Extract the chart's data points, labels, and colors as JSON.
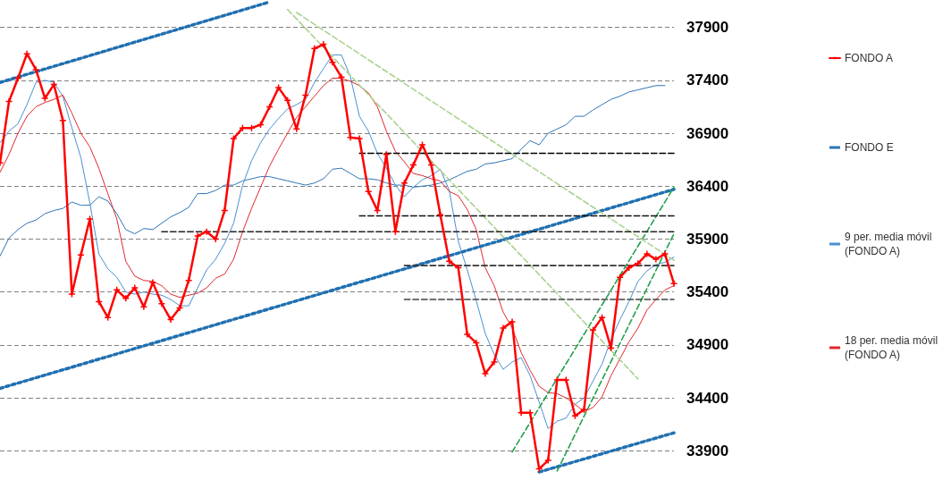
{
  "chart_data": {
    "type": "line",
    "categories": [
      null,
      null,
      null,
      null,
      null,
      null,
      null,
      null,
      null,
      null,
      null,
      null,
      null,
      null,
      null,
      null,
      null,
      null,
      null,
      null,
      null,
      null,
      null,
      null,
      null,
      null,
      null,
      null,
      null,
      null,
      null,
      null,
      null,
      null,
      null,
      null,
      null,
      null,
      null,
      null,
      null,
      null,
      null,
      null,
      null,
      null,
      null,
      null,
      null,
      null,
      null,
      null,
      null,
      null,
      null,
      null,
      null,
      null,
      null,
      null,
      null,
      null,
      null,
      null,
      null,
      null,
      null,
      null,
      null,
      null,
      null,
      null,
      null,
      null,
      null,
      null
    ],
    "ylim": [
      33650,
      38150
    ],
    "yticks": [
      33900,
      34400,
      34900,
      35400,
      35900,
      36400,
      36900,
      37400,
      37900
    ],
    "grid": "y",
    "legend": "right",
    "tick_labels": "y",
    "series": [
      {
        "name": "FONDO A",
        "color": "#ff0000",
        "marker": "cross",
        "line_style": "solid",
        "values": [
          36620,
          37200,
          37420,
          37650,
          37500,
          37230,
          37360,
          37020,
          35380,
          35750,
          36090,
          35310,
          35160,
          35420,
          35340,
          35440,
          35260,
          35490,
          35290,
          35140,
          35250,
          35510,
          35930,
          35970,
          35900,
          36170,
          36850,
          36950,
          36950,
          36980,
          37150,
          37330,
          37210,
          36940,
          37260,
          37700,
          37740,
          37570,
          37430,
          36860,
          36850,
          36350,
          36170,
          36700,
          35970,
          36430,
          36600,
          36790,
          36600,
          36130,
          35690,
          35630,
          35000,
          34920,
          34630,
          34740,
          35060,
          35120,
          34260,
          34260,
          33730,
          33810,
          34570,
          34570,
          34230,
          34290,
          35040,
          35160,
          34870,
          35540,
          35630,
          35670,
          35760,
          35710,
          35760,
          35480
        ]
      },
      {
        "name": "FONDO E",
        "color": "#2e75b6",
        "line_style": "solid",
        "values": [
          35740,
          35910,
          35990,
          36050,
          36080,
          36140,
          36170,
          36190,
          36250,
          36220,
          36220,
          36300,
          36260,
          36140,
          35990,
          35950,
          36000,
          35990,
          36050,
          36110,
          36150,
          36200,
          36330,
          36330,
          36360,
          36410,
          36410,
          36450,
          36470,
          36490,
          36490,
          36470,
          36450,
          36430,
          36410,
          36430,
          36470,
          36560,
          36570,
          36520,
          36470,
          36470,
          36460,
          36430,
          36410,
          36410,
          36390,
          36400,
          36410,
          36430,
          36460,
          36500,
          36540,
          36560,
          36610,
          36620,
          36640,
          36660,
          36750,
          36830,
          36790,
          36900,
          36940,
          36980,
          37060,
          37060,
          37120,
          37170,
          37220,
          37250,
          37290,
          37310,
          37330,
          37350,
          37350,
          null
        ]
      },
      {
        "name": "9 per. media móvil (FONDO A)",
        "color": "#4a90d0",
        "line_style": "solid",
        "values": [
          36810,
          36920,
          36990,
          37170,
          37380,
          37400,
          37380,
          37250,
          36950,
          36670,
          36240,
          35760,
          35620,
          35540,
          35400,
          35380,
          35400,
          35380,
          35370,
          35330,
          35270,
          35270,
          35440,
          35610,
          35710,
          35860,
          36050,
          36410,
          36640,
          36810,
          36940,
          37040,
          37130,
          37170,
          37220,
          37380,
          37510,
          37640,
          37640,
          37430,
          37060,
          36920,
          36710,
          36570,
          36410,
          36300,
          36390,
          36460,
          36500,
          36560,
          36360,
          35880,
          35610,
          35320,
          35010,
          34810,
          34670,
          34740,
          34780,
          34610,
          34360,
          34110,
          34180,
          34210,
          34340,
          34400,
          34560,
          34720,
          34950,
          35140,
          35310,
          35500,
          35600,
          35660,
          35680,
          35730
        ]
      },
      {
        "name": "18 per. media móvil (FONDO A)",
        "color": "#e0282c",
        "line_style": "solid",
        "values": [
          36530,
          36700,
          36900,
          37060,
          37150,
          37190,
          37220,
          37260,
          37090,
          36900,
          36770,
          36570,
          36330,
          36090,
          35690,
          35550,
          35510,
          35500,
          35460,
          35380,
          35350,
          35370,
          35390,
          35440,
          35530,
          35570,
          35710,
          35970,
          36190,
          36390,
          36590,
          36750,
          36900,
          37050,
          37150,
          37250,
          37350,
          37420,
          37420,
          37390,
          37350,
          37280,
          37150,
          36920,
          36730,
          36630,
          36520,
          36500,
          36470,
          36450,
          36350,
          36310,
          36180,
          35990,
          35630,
          35460,
          35210,
          35060,
          34830,
          34660,
          34510,
          34450,
          34440,
          34400,
          34340,
          34270,
          34310,
          34410,
          34610,
          34770,
          34930,
          35060,
          35230,
          35330,
          35420,
          35460
        ]
      },
      {
        "color": "#1f6fb0",
        "line_style": "dotted",
        "values": [
          37380,
          null,
          null,
          null,
          null,
          null,
          null,
          null,
          null,
          null,
          null,
          null,
          null,
          null,
          null,
          null,
          null,
          null,
          null,
          null,
          null,
          null,
          null,
          null,
          null,
          null,
          null,
          null,
          null,
          null,
          38140,
          null,
          null,
          null,
          null,
          null,
          null,
          null,
          null,
          null,
          null,
          null,
          null,
          null,
          null,
          null,
          null,
          null,
          null,
          null,
          null,
          null,
          null,
          null,
          null,
          null,
          null,
          null,
          null,
          null,
          null,
          null,
          null,
          null,
          null,
          null,
          null,
          null,
          null,
          null,
          null,
          null,
          null,
          null,
          null,
          null
        ]
      },
      {
        "color": "#2070b1",
        "line_style": "dotted",
        "values": [
          34490,
          null,
          null,
          null,
          null,
          null,
          null,
          null,
          null,
          null,
          null,
          null,
          null,
          null,
          null,
          null,
          null,
          null,
          null,
          null,
          null,
          null,
          null,
          null,
          null,
          null,
          null,
          null,
          null,
          null,
          null,
          null,
          null,
          null,
          null,
          null,
          null,
          null,
          null,
          null,
          null,
          null,
          null,
          null,
          null,
          null,
          null,
          null,
          null,
          null,
          null,
          null,
          null,
          null,
          null,
          null,
          null,
          null,
          null,
          null,
          null,
          null,
          null,
          null,
          null,
          null,
          null,
          null,
          null,
          null,
          null,
          null,
          null,
          null,
          null,
          36370
        ]
      },
      {
        "color": "#2171b2",
        "line_style": "dotted",
        "values": [
          null,
          null,
          null,
          null,
          null,
          null,
          null,
          null,
          null,
          null,
          null,
          null,
          null,
          null,
          null,
          null,
          null,
          null,
          null,
          null,
          null,
          null,
          null,
          null,
          null,
          null,
          null,
          null,
          null,
          null,
          null,
          null,
          null,
          null,
          null,
          null,
          null,
          null,
          null,
          null,
          null,
          null,
          null,
          null,
          null,
          null,
          null,
          null,
          null,
          null,
          null,
          null,
          null,
          null,
          null,
          null,
          null,
          null,
          null,
          null,
          33700,
          null,
          null,
          null,
          null,
          null,
          null,
          null,
          null,
          null,
          null,
          null,
          null,
          null,
          null,
          34070
        ]
      },
      {
        "color": "#22a04a",
        "line_style": "dashed",
        "values": [
          null,
          null,
          null,
          null,
          null,
          null,
          null,
          null,
          null,
          null,
          null,
          null,
          null,
          null,
          null,
          null,
          null,
          null,
          null,
          null,
          null,
          null,
          null,
          null,
          null,
          null,
          null,
          null,
          null,
          null,
          null,
          null,
          null,
          null,
          null,
          null,
          null,
          null,
          null,
          null,
          null,
          null,
          null,
          null,
          null,
          null,
          null,
          null,
          null,
          null,
          null,
          null,
          null,
          null,
          null,
          null,
          null,
          33890,
          null,
          null,
          null,
          null,
          null,
          null,
          null,
          null,
          null,
          null,
          null,
          null,
          null,
          null,
          null,
          null,
          null,
          36390
        ]
      },
      {
        "color": "#23a14b",
        "line_style": "dashed",
        "values": [
          null,
          null,
          null,
          null,
          null,
          null,
          null,
          null,
          null,
          null,
          null,
          null,
          null,
          null,
          null,
          null,
          null,
          null,
          null,
          null,
          null,
          null,
          null,
          null,
          null,
          null,
          null,
          null,
          null,
          null,
          null,
          null,
          null,
          null,
          null,
          null,
          null,
          null,
          null,
          null,
          null,
          null,
          null,
          null,
          null,
          null,
          null,
          null,
          null,
          null,
          null,
          null,
          null,
          null,
          null,
          null,
          null,
          null,
          null,
          null,
          null,
          null,
          33710,
          null,
          null,
          null,
          null,
          null,
          null,
          null,
          null,
          null,
          null,
          null,
          null,
          35950
        ]
      },
      {
        "color": "#a9d18e",
        "line_style": "dashed",
        "values": [
          null,
          null,
          null,
          null,
          null,
          null,
          null,
          null,
          null,
          null,
          null,
          null,
          null,
          null,
          null,
          null,
          null,
          null,
          null,
          null,
          null,
          null,
          null,
          null,
          null,
          null,
          null,
          null,
          null,
          null,
          null,
          null,
          38070,
          null,
          null,
          null,
          null,
          null,
          null,
          null,
          null,
          null,
          null,
          null,
          null,
          null,
          null,
          null,
          null,
          null,
          null,
          null,
          null,
          null,
          null,
          null,
          null,
          null,
          null,
          null,
          null,
          null,
          null,
          null,
          null,
          null,
          null,
          null,
          null,
          null,
          null,
          34580,
          null,
          null,
          null,
          null
        ]
      },
      {
        "color": "#aad28f",
        "line_style": "dashed",
        "values": [
          null,
          null,
          null,
          null,
          null,
          null,
          null,
          null,
          null,
          null,
          null,
          null,
          null,
          null,
          null,
          null,
          null,
          null,
          null,
          null,
          null,
          null,
          null,
          null,
          null,
          null,
          null,
          null,
          null,
          null,
          null,
          null,
          null,
          38040,
          null,
          null,
          null,
          null,
          null,
          null,
          null,
          null,
          null,
          null,
          null,
          null,
          null,
          null,
          null,
          null,
          null,
          null,
          null,
          null,
          null,
          null,
          null,
          null,
          null,
          null,
          null,
          null,
          null,
          null,
          null,
          null,
          null,
          null,
          null,
          null,
          null,
          null,
          null,
          null,
          null,
          35700
        ]
      },
      {
        "color": "#000000",
        "line_style": "dashed",
        "values": [
          null,
          null,
          null,
          null,
          null,
          null,
          null,
          null,
          null,
          null,
          null,
          null,
          null,
          null,
          null,
          null,
          null,
          null,
          null,
          null,
          null,
          null,
          null,
          null,
          null,
          null,
          null,
          null,
          null,
          null,
          null,
          null,
          null,
          null,
          null,
          null,
          null,
          null,
          null,
          null,
          36710,
          null,
          null,
          null,
          null,
          null,
          null,
          null,
          null,
          null,
          null,
          null,
          null,
          null,
          null,
          null,
          null,
          null,
          null,
          null,
          null,
          null,
          null,
          null,
          null,
          null,
          null,
          null,
          null,
          null,
          null,
          null,
          null,
          null,
          null,
          36710
        ]
      },
      {
        "color": "#111111",
        "line_style": "dashed",
        "values": [
          null,
          null,
          null,
          null,
          null,
          null,
          null,
          null,
          null,
          null,
          null,
          null,
          null,
          null,
          null,
          null,
          null,
          null,
          null,
          null,
          null,
          null,
          null,
          null,
          null,
          null,
          null,
          null,
          null,
          null,
          null,
          null,
          null,
          null,
          null,
          null,
          null,
          null,
          null,
          null,
          36120,
          null,
          null,
          null,
          null,
          null,
          null,
          null,
          null,
          null,
          null,
          null,
          null,
          null,
          null,
          null,
          null,
          null,
          null,
          null,
          null,
          null,
          null,
          null,
          null,
          null,
          null,
          null,
          null,
          null,
          null,
          null,
          null,
          null,
          null,
          36120
        ]
      },
      {
        "color": "#222222",
        "line_style": "dashed",
        "values": [
          null,
          null,
          null,
          null,
          null,
          null,
          null,
          null,
          null,
          null,
          null,
          null,
          null,
          null,
          null,
          null,
          null,
          null,
          35970,
          null,
          null,
          null,
          null,
          null,
          null,
          null,
          null,
          null,
          null,
          null,
          null,
          null,
          null,
          null,
          null,
          null,
          null,
          null,
          null,
          null,
          null,
          null,
          null,
          null,
          null,
          null,
          null,
          null,
          null,
          null,
          null,
          null,
          null,
          null,
          null,
          null,
          null,
          null,
          null,
          null,
          null,
          null,
          null,
          null,
          null,
          null,
          null,
          null,
          null,
          null,
          null,
          null,
          null,
          null,
          null,
          35970
        ]
      },
      {
        "color": "#333333",
        "line_style": "dashed",
        "values": [
          null,
          null,
          null,
          null,
          null,
          null,
          null,
          null,
          null,
          null,
          null,
          null,
          null,
          null,
          null,
          null,
          null,
          null,
          null,
          null,
          null,
          null,
          null,
          null,
          null,
          null,
          null,
          null,
          null,
          null,
          null,
          null,
          null,
          null,
          null,
          null,
          null,
          null,
          null,
          null,
          null,
          null,
          null,
          null,
          null,
          35650,
          null,
          null,
          null,
          null,
          null,
          null,
          null,
          null,
          null,
          null,
          null,
          null,
          null,
          null,
          null,
          null,
          null,
          null,
          null,
          null,
          null,
          null,
          null,
          null,
          null,
          null,
          null,
          null,
          null,
          35650
        ]
      },
      {
        "color": "#444444",
        "line_style": "dashed",
        "values": [
          null,
          null,
          null,
          null,
          null,
          null,
          null,
          null,
          null,
          null,
          null,
          null,
          null,
          null,
          null,
          null,
          null,
          null,
          null,
          null,
          null,
          null,
          null,
          null,
          null,
          null,
          null,
          null,
          null,
          null,
          null,
          null,
          null,
          null,
          null,
          null,
          null,
          null,
          null,
          null,
          null,
          null,
          null,
          null,
          null,
          35330,
          null,
          null,
          null,
          null,
          null,
          null,
          null,
          null,
          null,
          null,
          null,
          null,
          null,
          null,
          null,
          null,
          null,
          null,
          null,
          null,
          null,
          null,
          null,
          null,
          null,
          null,
          null,
          null,
          null,
          35330
        ]
      }
    ]
  }
}
